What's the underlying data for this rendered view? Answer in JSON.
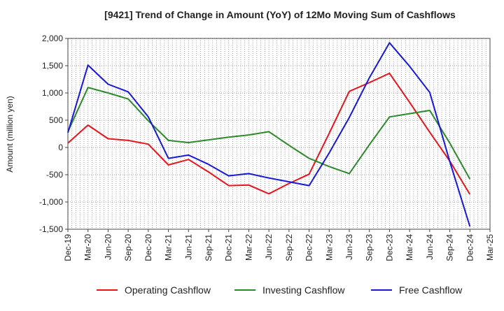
{
  "chart_data": {
    "type": "line",
    "title": "[9421]  Trend of Change in Amount (YoY) of 12Mo Moving Sum of Cashflows",
    "xlabel": "",
    "ylabel": "Amount (million yen)",
    "ylim": [
      -1500,
      2000
    ],
    "yticks": [
      -1500,
      -1000,
      -500,
      0,
      500,
      1000,
      1500,
      2000
    ],
    "ytick_labels": [
      "-1,500",
      "-1,000",
      "-500",
      "0",
      "500",
      "1,000",
      "1,500",
      "2,000"
    ],
    "grid": true,
    "legend_position": "bottom",
    "categories": [
      "Dec-19",
      "Mar-20",
      "Jun-20",
      "Sep-20",
      "Dec-20",
      "Mar-21",
      "Jun-21",
      "Sep-21",
      "Dec-21",
      "Mar-22",
      "Jun-22",
      "Sep-22",
      "Dec-22",
      "Mar-23",
      "Jun-23",
      "Sep-23",
      "Dec-23",
      "Mar-24",
      "Jun-24",
      "Sep-24",
      "Dec-24",
      "Mar-25"
    ],
    "series": [
      {
        "name": "Operating Cashflow",
        "color": "#e8141c",
        "values": [
          80,
          410,
          160,
          130,
          60,
          -320,
          -220,
          -450,
          -700,
          -690,
          -850,
          -660,
          -490,
          260,
          1030,
          1190,
          1360,
          830,
          280,
          -250,
          -860,
          null
        ]
      },
      {
        "name": "Investing Cashflow",
        "color": "#2a8a2a",
        "values": [
          290,
          1100,
          1000,
          890,
          490,
          130,
          90,
          140,
          190,
          230,
          290,
          40,
          -200,
          -350,
          -480,
          50,
          560,
          620,
          680,
          80,
          -580,
          null
        ]
      },
      {
        "name": "Free Cashflow",
        "color": "#1818d8",
        "values": [
          270,
          1510,
          1160,
          1020,
          560,
          -200,
          -140,
          -310,
          -520,
          -480,
          -560,
          -630,
          -700,
          -100,
          550,
          1280,
          1920,
          1490,
          1010,
          -260,
          -1450,
          null
        ]
      }
    ]
  }
}
